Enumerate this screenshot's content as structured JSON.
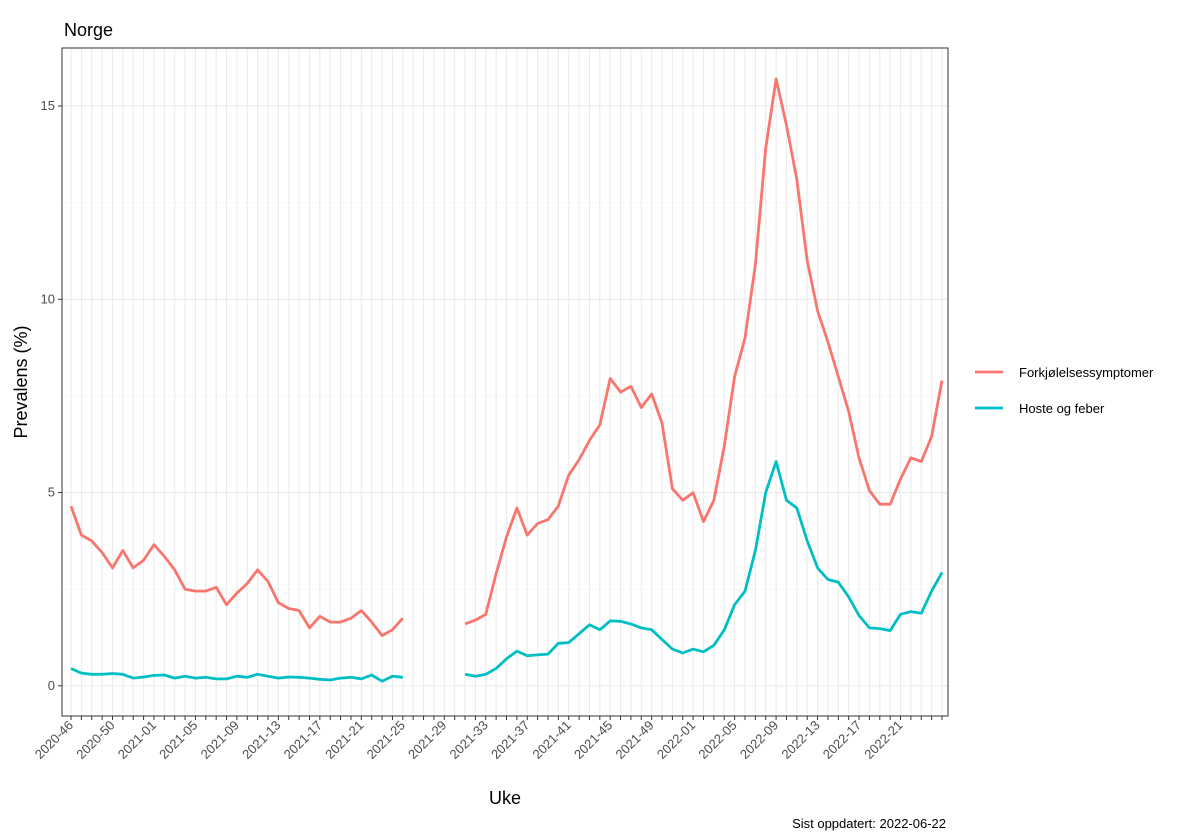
{
  "chart_data": {
    "type": "line",
    "title": "Norge",
    "x_label": "Uke",
    "y_label": "Prevalens (%)",
    "caption": "Sist oppdatert: 2022-06-22",
    "categories": [
      "2020-46",
      null,
      null,
      null,
      "2020-50",
      null,
      null,
      null,
      "2021-01",
      null,
      null,
      null,
      "2021-05",
      null,
      null,
      null,
      "2021-09",
      null,
      null,
      null,
      "2021-13",
      null,
      null,
      null,
      "2021-17",
      null,
      null,
      null,
      "2021-21",
      null,
      null,
      null,
      "2021-25",
      null,
      null,
      null,
      "2021-29",
      null,
      null,
      null,
      "2021-33",
      null,
      null,
      null,
      "2021-37",
      null,
      null,
      null,
      "2021-41",
      null,
      null,
      null,
      "2021-45",
      null,
      null,
      null,
      "2021-49",
      null,
      null,
      null,
      "2022-01",
      null,
      null,
      null,
      "2022-05",
      null,
      null,
      null,
      "2022-09",
      null,
      null,
      null,
      "2022-13",
      null,
      null,
      null,
      "2022-17",
      null,
      null,
      null,
      "2022-21",
      null,
      null,
      null,
      null
    ],
    "series": [
      {
        "name": "Forkjølelsessymptomer",
        "color": "#f8766d",
        "values": [
          4.65,
          3.9,
          3.75,
          3.45,
          3.05,
          3.5,
          3.05,
          3.25,
          3.65,
          3.35,
          3.0,
          2.5,
          2.45,
          2.45,
          2.55,
          2.1,
          2.4,
          2.65,
          3.0,
          2.7,
          2.15,
          2.0,
          1.95,
          1.5,
          1.8,
          1.65,
          1.65,
          1.75,
          1.95,
          1.65,
          1.3,
          1.45,
          1.75,
          null,
          null,
          null,
          null,
          null,
          1.6,
          1.7,
          1.85,
          2.9,
          3.85,
          4.6,
          3.9,
          4.2,
          4.3,
          4.65,
          5.45,
          5.85,
          6.35,
          6.75,
          7.95,
          7.6,
          7.75,
          7.2,
          7.55,
          6.8,
          5.1,
          4.8,
          5.0,
          4.25,
          4.8,
          6.2,
          8.0,
          9.0,
          10.9,
          13.9,
          15.7,
          14.5,
          13.1,
          11.0,
          9.7,
          8.9,
          8.0,
          7.1,
          5.9,
          5.05,
          4.7,
          4.7,
          5.35,
          5.9,
          5.8,
          6.45,
          7.9
        ]
      },
      {
        "name": "Hoste og feber",
        "color": "#00bfc4",
        "values": [
          0.45,
          0.33,
          0.3,
          0.3,
          0.32,
          0.3,
          0.2,
          0.23,
          0.27,
          0.28,
          0.2,
          0.25,
          0.2,
          0.22,
          0.18,
          0.18,
          0.25,
          0.22,
          0.3,
          0.25,
          0.2,
          0.23,
          0.22,
          0.2,
          0.17,
          0.15,
          0.2,
          0.22,
          0.18,
          0.28,
          0.12,
          0.25,
          0.22,
          null,
          null,
          null,
          null,
          null,
          0.3,
          0.25,
          0.3,
          0.45,
          0.7,
          0.9,
          0.78,
          0.8,
          0.82,
          1.1,
          1.12,
          1.35,
          1.58,
          1.45,
          1.68,
          1.67,
          1.6,
          1.5,
          1.45,
          1.2,
          0.95,
          0.85,
          0.95,
          0.88,
          1.05,
          1.45,
          2.1,
          2.45,
          3.5,
          5.0,
          5.8,
          4.8,
          4.6,
          3.75,
          3.05,
          2.75,
          2.68,
          2.3,
          1.82,
          1.5,
          1.48,
          1.43,
          1.85,
          1.92,
          1.88,
          2.45,
          2.93
        ]
      }
    ],
    "ylim": [
      -0.78,
      16.5
    ],
    "yticks": [
      0,
      5,
      10,
      15
    ],
    "y_minor_ticks": [
      2.5,
      7.5,
      12.5
    ],
    "grid": true,
    "legend": "right"
  }
}
